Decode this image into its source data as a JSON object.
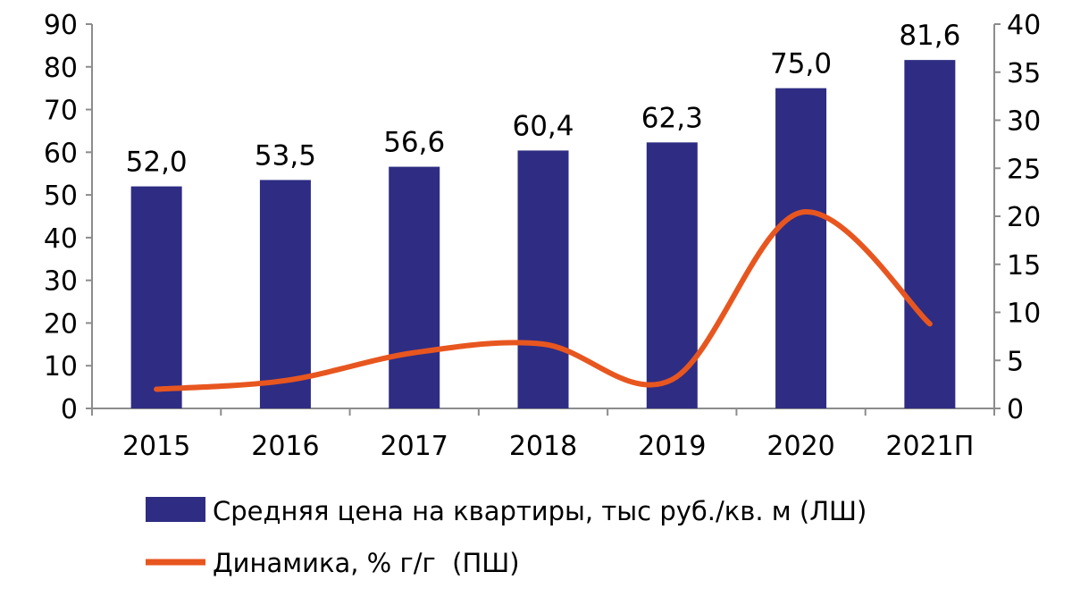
{
  "chart_data": {
    "type": "bar",
    "categories": [
      "2015",
      "2016",
      "2017",
      "2018",
      "2019",
      "2020",
      "2021П"
    ],
    "series": [
      {
        "name": "Средняя цена на квартиры, тыс руб./кв. м (ЛШ)",
        "type": "bar",
        "axis": "left",
        "values": [
          52.0,
          53.5,
          56.6,
          60.4,
          62.3,
          75.0,
          81.6
        ],
        "labels": [
          "52,0",
          "53,5",
          "56,6",
          "60,4",
          "62,3",
          "75,0",
          "81,6"
        ],
        "color": "#2e2d83"
      },
      {
        "name": "Динамика, % г/г  (ПШ)",
        "type": "line",
        "axis": "right",
        "values": [
          2.0,
          2.9,
          5.8,
          6.7,
          3.0,
          20.4,
          8.8
        ],
        "color": "#e8561f"
      }
    ],
    "ylim_left": [
      0,
      90
    ],
    "yticks_left": [
      "0",
      "10",
      "20",
      "30",
      "40",
      "50",
      "60",
      "70",
      "80",
      "90"
    ],
    "ylim_right": [
      0,
      40
    ],
    "yticks_right": [
      "0",
      "5",
      "10",
      "15",
      "20",
      "25",
      "30",
      "35",
      "40"
    ],
    "grid": false,
    "legend_position": "bottom"
  }
}
